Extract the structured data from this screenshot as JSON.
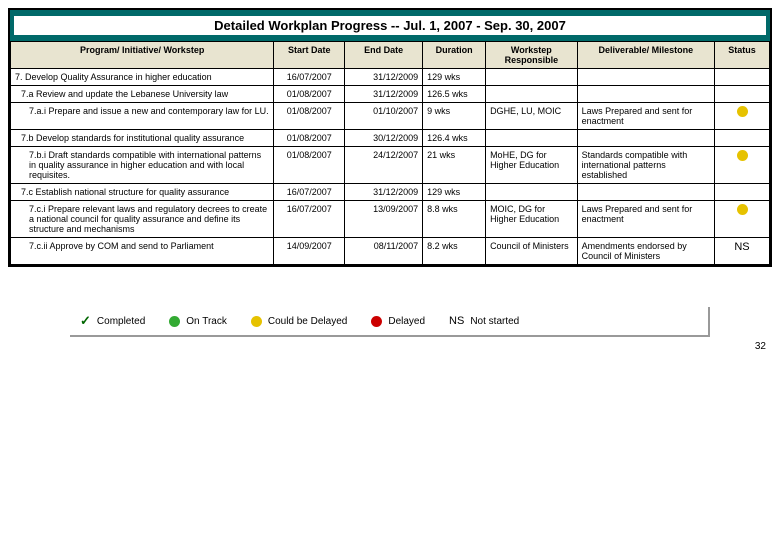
{
  "title": "Detailed Workplan Progress -- Jul. 1, 2007 - Sep. 30, 2007",
  "headers": {
    "program": "Program/ Initiative/ Workstep",
    "start": "Start Date",
    "end": "End Date",
    "duration": "Duration",
    "responsible": "Workstep Responsible",
    "deliverable": "Deliverable/ Milestone",
    "status": "Status"
  },
  "rows": [
    {
      "indent": 0,
      "program": "7. Develop Quality Assurance in higher education",
      "start": "16/07/2007",
      "end": "31/12/2009",
      "duration": "129 wks",
      "responsible": "",
      "deliverable": "",
      "status_color": "",
      "status_text": ""
    },
    {
      "indent": 1,
      "program": "7.a Review and update the Lebanese University law",
      "start": "01/08/2007",
      "end": "31/12/2009",
      "duration": "126.5 wks",
      "responsible": "",
      "deliverable": "",
      "status_color": "",
      "status_text": ""
    },
    {
      "indent": 2,
      "program": "7.a.i Prepare and issue a new and contemporary law for LU.",
      "start": "01/08/2007",
      "end": "01/10/2007",
      "duration": "9 wks",
      "responsible": "DGHE, LU, MOIC",
      "deliverable": "Laws Prepared and sent for enactment",
      "status_color": "#e6c200",
      "status_text": ""
    },
    {
      "indent": 1,
      "program": "7.b Develop standards for institutional quality assurance",
      "start": "01/08/2007",
      "end": "30/12/2009",
      "duration": "126.4 wks",
      "responsible": "",
      "deliverable": "",
      "status_color": "",
      "status_text": ""
    },
    {
      "indent": 2,
      "program": "7.b.i Draft standards compatible with international patterns in quality assurance in higher education and with local requisites.",
      "start": "01/08/2007",
      "end": "24/12/2007",
      "duration": "21 wks",
      "responsible": "MoHE, DG for Higher Education",
      "deliverable": "Standards compatible with international patterns established",
      "status_color": "#e6c200",
      "status_text": ""
    },
    {
      "indent": 1,
      "program": "7.c Establish national structure for quality assurance",
      "start": "16/07/2007",
      "end": "31/12/2009",
      "duration": "129 wks",
      "responsible": "",
      "deliverable": "",
      "status_color": "",
      "status_text": ""
    },
    {
      "indent": 2,
      "program": "7.c.i Prepare relevant laws and regulatory decrees to create a national council for quality assurance and define its structure and mechanisms",
      "start": "16/07/2007",
      "end": "13/09/2007",
      "duration": "8.8 wks",
      "responsible": "MOIC, DG for Higher Education",
      "deliverable": "Laws Prepared and sent for enactment",
      "status_color": "#e6c200",
      "status_text": ""
    },
    {
      "indent": 2,
      "program": "7.c.ii Approve by COM and send to Parliament",
      "start": "14/09/2007",
      "end": "08/11/2007",
      "duration": "8.2 wks",
      "responsible": "Council of Ministers",
      "deliverable": "Amendments endorsed by Council of Ministers",
      "status_color": "",
      "status_text": "NS"
    }
  ],
  "legend": {
    "completed": "Completed",
    "on_track": "On Track",
    "could_delay": "Could be Delayed",
    "delayed": "Delayed",
    "not_started_code": "NS",
    "not_started": "Not started",
    "on_track_color": "#33aa33",
    "could_delay_color": "#e6c200",
    "delayed_color": "#cc0000"
  },
  "slide_number": "32"
}
